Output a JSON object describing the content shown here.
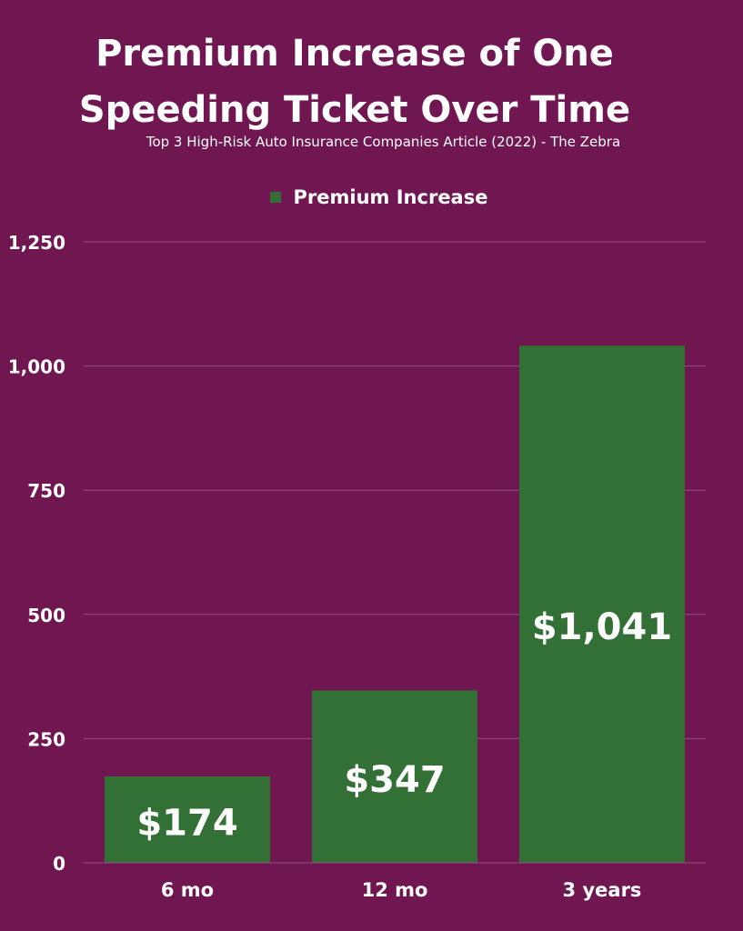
{
  "title_line1": "Premium Increase of One",
  "title_line2": "Speeding Ticket Over Time",
  "subtitle": "Top 3 High-Risk Auto Insurance Companies Article (2022) - The Zebra",
  "colors": {
    "background": "#701651",
    "bar": "#337035",
    "gridline": "#94527e",
    "text": "#ffffff"
  },
  "chart_data": {
    "type": "bar",
    "categories": [
      "6 mo",
      "12 mo",
      "3 years"
    ],
    "series": [
      {
        "name": "Premium Increase",
        "values": [
          174,
          347,
          1041
        ]
      }
    ],
    "data_labels": [
      "$174",
      "$347",
      "$1,041"
    ],
    "yticks": [
      0,
      250,
      500,
      750,
      1000,
      1250
    ],
    "ytick_labels": [
      "0",
      "250",
      "500",
      "750",
      "1,000",
      "1,250"
    ],
    "ylim": [
      0,
      1250
    ],
    "xlabel": "",
    "ylabel": "",
    "legend_position": "top-center",
    "grid": true
  }
}
